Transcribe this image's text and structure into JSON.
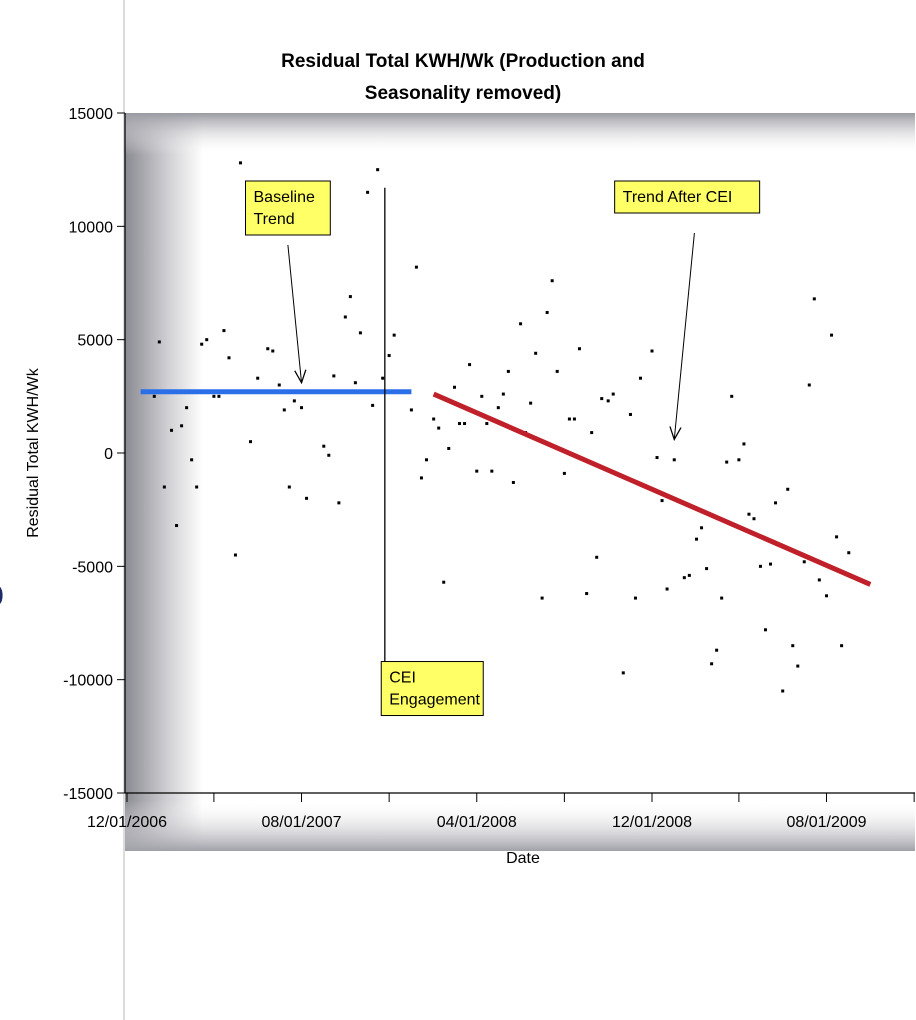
{
  "chart_data": {
    "type": "scatter",
    "title_lines": [
      "Residual Total KWH/Wk (Production and",
      "Seasonality removed)"
    ],
    "xlabel": "Date",
    "ylabel": "Residual Total KWH/Wk",
    "x_tick_labels": [
      "12/01/2006",
      "08/01/2007",
      "04/01/2008",
      "12/01/2008",
      "08/01/2009"
    ],
    "xlim": [
      "2006-12-01",
      "2009-10-15"
    ],
    "ylim": [
      -15000,
      15000
    ],
    "y_ticks": [
      15000,
      10000,
      5000,
      0,
      -5000,
      -10000,
      -15000
    ],
    "grid": false,
    "points": [
      {
        "x": "2007-01-08",
        "y": 2500
      },
      {
        "x": "2007-01-15",
        "y": 4900
      },
      {
        "x": "2007-01-22",
        "y": -1500
      },
      {
        "x": "2007-02-01",
        "y": 1000
      },
      {
        "x": "2007-02-08",
        "y": -3200
      },
      {
        "x": "2007-02-15",
        "y": 1200
      },
      {
        "x": "2007-02-22",
        "y": 2000
      },
      {
        "x": "2007-03-01",
        "y": -300
      },
      {
        "x": "2007-03-08",
        "y": -1500
      },
      {
        "x": "2007-03-15",
        "y": 4800
      },
      {
        "x": "2007-03-22",
        "y": 5000
      },
      {
        "x": "2007-04-01",
        "y": 2500
      },
      {
        "x": "2007-04-08",
        "y": 2500
      },
      {
        "x": "2007-04-15",
        "y": 5400
      },
      {
        "x": "2007-04-22",
        "y": 4200
      },
      {
        "x": "2007-05-01",
        "y": -4500
      },
      {
        "x": "2007-05-08",
        "y": 12800
      },
      {
        "x": "2007-05-22",
        "y": 500
      },
      {
        "x": "2007-06-01",
        "y": 3300
      },
      {
        "x": "2007-06-15",
        "y": 4600
      },
      {
        "x": "2007-06-22",
        "y": 4500
      },
      {
        "x": "2007-07-01",
        "y": 3000
      },
      {
        "x": "2007-07-08",
        "y": 1900
      },
      {
        "x": "2007-07-15",
        "y": -1500
      },
      {
        "x": "2007-07-22",
        "y": 2300
      },
      {
        "x": "2007-08-01",
        "y": 2000
      },
      {
        "x": "2007-08-08",
        "y": -2000
      },
      {
        "x": "2007-08-22",
        "y": 11200
      },
      {
        "x": "2007-09-01",
        "y": 300
      },
      {
        "x": "2007-09-08",
        "y": -100
      },
      {
        "x": "2007-09-15",
        "y": 3400
      },
      {
        "x": "2007-09-22",
        "y": -2200
      },
      {
        "x": "2007-10-01",
        "y": 6000
      },
      {
        "x": "2007-10-08",
        "y": 6900
      },
      {
        "x": "2007-10-15",
        "y": 3100
      },
      {
        "x": "2007-10-22",
        "y": 5300
      },
      {
        "x": "2007-11-01",
        "y": 11500
      },
      {
        "x": "2007-11-08",
        "y": 2100
      },
      {
        "x": "2007-11-15",
        "y": 12500
      },
      {
        "x": "2007-11-22",
        "y": 3300
      },
      {
        "x": "2007-12-01",
        "y": 4300
      },
      {
        "x": "2007-12-08",
        "y": 5200
      },
      {
        "x": "2008-01-01",
        "y": 1900
      },
      {
        "x": "2008-01-08",
        "y": 8200
      },
      {
        "x": "2008-01-15",
        "y": -1100
      },
      {
        "x": "2008-01-22",
        "y": -300
      },
      {
        "x": "2008-02-01",
        "y": 1500
      },
      {
        "x": "2008-02-08",
        "y": 1100
      },
      {
        "x": "2008-02-15",
        "y": -5700
      },
      {
        "x": "2008-02-22",
        "y": 200
      },
      {
        "x": "2008-03-01",
        "y": 2900
      },
      {
        "x": "2008-03-08",
        "y": 1300
      },
      {
        "x": "2008-03-15",
        "y": 1300
      },
      {
        "x": "2008-03-22",
        "y": 3900
      },
      {
        "x": "2008-04-01",
        "y": -800
      },
      {
        "x": "2008-04-08",
        "y": 2500
      },
      {
        "x": "2008-04-15",
        "y": 1300
      },
      {
        "x": "2008-04-22",
        "y": -800
      },
      {
        "x": "2008-05-01",
        "y": 2000
      },
      {
        "x": "2008-05-08",
        "y": 2600
      },
      {
        "x": "2008-05-15",
        "y": 3600
      },
      {
        "x": "2008-05-22",
        "y": -1300
      },
      {
        "x": "2008-06-01",
        "y": 5700
      },
      {
        "x": "2008-06-08",
        "y": 900
      },
      {
        "x": "2008-06-15",
        "y": 2200
      },
      {
        "x": "2008-06-22",
        "y": 4400
      },
      {
        "x": "2008-07-01",
        "y": -6400
      },
      {
        "x": "2008-07-08",
        "y": 6200
      },
      {
        "x": "2008-07-15",
        "y": 7600
      },
      {
        "x": "2008-07-22",
        "y": 3600
      },
      {
        "x": "2008-08-01",
        "y": -900
      },
      {
        "x": "2008-08-08",
        "y": 1500
      },
      {
        "x": "2008-08-15",
        "y": 1500
      },
      {
        "x": "2008-08-22",
        "y": 4600
      },
      {
        "x": "2008-09-01",
        "y": -6200
      },
      {
        "x": "2008-09-08",
        "y": 900
      },
      {
        "x": "2008-09-15",
        "y": -4600
      },
      {
        "x": "2008-09-22",
        "y": 2400
      },
      {
        "x": "2008-10-01",
        "y": 2300
      },
      {
        "x": "2008-10-08",
        "y": 2600
      },
      {
        "x": "2008-10-22",
        "y": -9700
      },
      {
        "x": "2008-11-01",
        "y": 1700
      },
      {
        "x": "2008-11-08",
        "y": -6400
      },
      {
        "x": "2008-11-15",
        "y": 3300
      },
      {
        "x": "2008-12-01",
        "y": 4500
      },
      {
        "x": "2008-12-08",
        "y": -200
      },
      {
        "x": "2008-12-15",
        "y": -2100
      },
      {
        "x": "2008-12-22",
        "y": -6000
      },
      {
        "x": "2009-01-01",
        "y": -300
      },
      {
        "x": "2009-01-15",
        "y": -5500
      },
      {
        "x": "2009-01-22",
        "y": -5400
      },
      {
        "x": "2009-02-01",
        "y": -3800
      },
      {
        "x": "2009-02-08",
        "y": -3300
      },
      {
        "x": "2009-02-15",
        "y": -5100
      },
      {
        "x": "2009-02-22",
        "y": -9300
      },
      {
        "x": "2009-03-01",
        "y": -8700
      },
      {
        "x": "2009-03-08",
        "y": -6400
      },
      {
        "x": "2009-03-15",
        "y": -400
      },
      {
        "x": "2009-03-22",
        "y": 2500
      },
      {
        "x": "2009-04-01",
        "y": -300
      },
      {
        "x": "2009-04-08",
        "y": 400
      },
      {
        "x": "2009-04-15",
        "y": -2700
      },
      {
        "x": "2009-04-22",
        "y": -2900
      },
      {
        "x": "2009-05-01",
        "y": -5000
      },
      {
        "x": "2009-05-08",
        "y": -7800
      },
      {
        "x": "2009-05-15",
        "y": -4900
      },
      {
        "x": "2009-05-22",
        "y": -2200
      },
      {
        "x": "2009-06-01",
        "y": -10500
      },
      {
        "x": "2009-06-08",
        "y": -1600
      },
      {
        "x": "2009-06-15",
        "y": -8500
      },
      {
        "x": "2009-06-22",
        "y": -9400
      },
      {
        "x": "2009-07-01",
        "y": -4800
      },
      {
        "x": "2009-07-08",
        "y": 3000
      },
      {
        "x": "2009-07-15",
        "y": 6800
      },
      {
        "x": "2009-07-22",
        "y": -5600
      },
      {
        "x": "2009-08-01",
        "y": -6300
      },
      {
        "x": "2009-08-08",
        "y": 5200
      },
      {
        "x": "2009-08-15",
        "y": -3700
      },
      {
        "x": "2009-08-22",
        "y": -8500
      },
      {
        "x": "2009-09-01",
        "y": -4400
      }
    ],
    "trend_lines": [
      {
        "label_lines": [
          "Baseline",
          "Trend"
        ],
        "color": "#2b6fe8",
        "x": [
          "2006-12-20",
          "2008-01-01"
        ],
        "y": [
          2700,
          2700
        ]
      },
      {
        "label_lines": [
          "Trend After CEI"
        ],
        "color": "#c0202a",
        "x": [
          "2008-02-01",
          "2009-10-01"
        ],
        "y": [
          2600,
          -5800
        ]
      }
    ],
    "annotations": [
      {
        "label_lines": [
          "Baseline",
          "Trend"
        ],
        "box_x": "2007-05-15",
        "box_y": 12000,
        "arrow_to": {
          "x": "2007-08-01",
          "y": 3100
        }
      },
      {
        "label_lines": [
          "Trend After CEI"
        ],
        "box_x": "2008-10-10",
        "box_y": 12000,
        "arrow_to": {
          "x": "2009-01-01",
          "y": 600
        }
      },
      {
        "label_lines": [
          "CEI",
          "Engagement"
        ],
        "box_x": "2007-11-20",
        "box_y": -9200,
        "vline_x": "2007-11-25",
        "vline_y": [
          11700,
          -9200
        ]
      }
    ],
    "colors": {
      "annotation_fill": "#ffff66",
      "points": "#000000"
    }
  },
  "side_glyph": "ó"
}
